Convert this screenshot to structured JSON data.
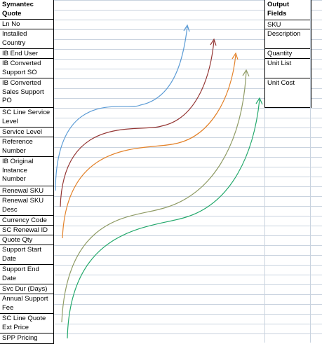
{
  "left_table": {
    "header": "Symantec Quote",
    "rows": [
      "Ln No",
      "Installed Country",
      "IB End User",
      "IB Converted Support SO",
      "IB Converted Sales Support PO",
      "SC Line Service Level",
      "Service Level",
      "Reference Number",
      "IB Original Instance Number",
      "Renewal SKU",
      "Renewal SKU Desc",
      "Currency Code",
      "SC Renewal ID",
      "Quote Qty",
      "Support Start Date",
      "Support End Date",
      "Svc Dur (Days)",
      "Annual Support Fee",
      "SC Line Quote Ext Price",
      "SPP Pricing"
    ]
  },
  "right_table": {
    "header": "Output Fields",
    "rows": [
      "SKU",
      "Description",
      "Quantity",
      "Unit List",
      "Unit Cost"
    ]
  },
  "arrow_colors": [
    "#5b9bd5",
    "#943634",
    "#e3822a",
    "#8f9b65",
    "#22a86b"
  ]
}
